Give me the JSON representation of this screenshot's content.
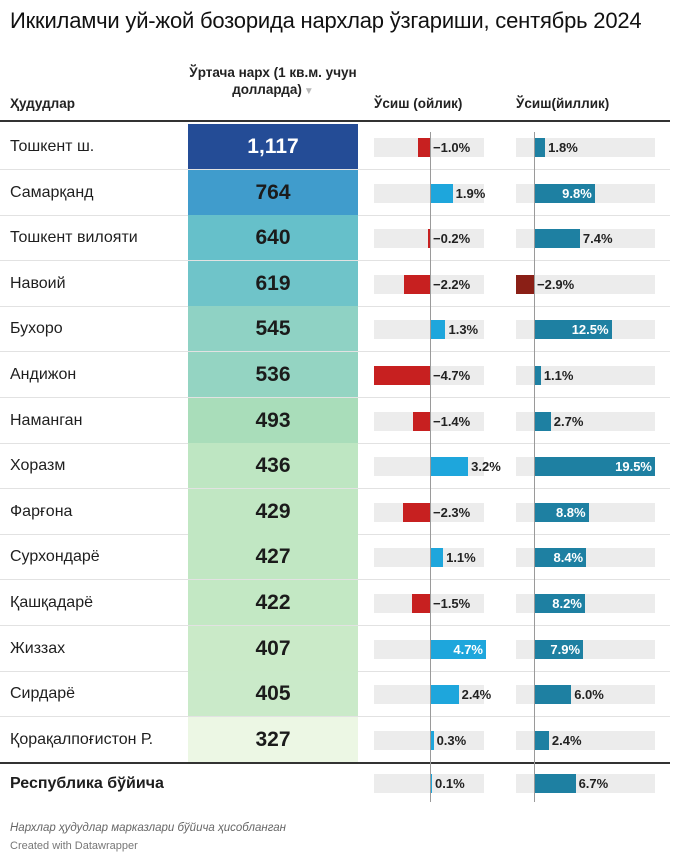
{
  "title": "Иккиламчи уй-жой бозорида нархлар ўзгариши, сентябрь 2024",
  "headers": {
    "region": "Ҳудудлар",
    "price": "Ўртача нарх (1 кв.м. учун долларда)",
    "sort_icon": "▼",
    "monthly": "Ўсиш (ойлик)",
    "yearly": "Ўсиш(йиллик)"
  },
  "colors": {
    "positive_monthly": "#1ea6dc",
    "negative": "#c72020",
    "positive_yearly": "#1e80a2",
    "negative_yearly_dark": "#8a1f16",
    "track": "#ececec"
  },
  "chart_data": {
    "type": "table",
    "title": "Иккиламчи уй-жой бозорида нархлар ўзгариши, сентябрь 2024",
    "columns": [
      "Ҳудудлар",
      "Ўртача нарх (1 кв.м. учун долларда)",
      "Ўсиш (ойлик)",
      "Ўсиш(йиллик)"
    ],
    "rows": [
      {
        "region": "Тошкент ш.",
        "price": 1117,
        "price_label": "1,117",
        "monthly": -1.0,
        "monthly_label": "−1.0%",
        "yearly": 1.8,
        "yearly_label": "1.8%"
      },
      {
        "region": "Самарқанд",
        "price": 764,
        "price_label": "764",
        "monthly": 1.9,
        "monthly_label": "1.9%",
        "yearly": 9.8,
        "yearly_label": "9.8%"
      },
      {
        "region": "Тошкент вилояти",
        "price": 640,
        "price_label": "640",
        "monthly": -0.2,
        "monthly_label": "−0.2%",
        "yearly": 7.4,
        "yearly_label": "7.4%"
      },
      {
        "region": "Навоий",
        "price": 619,
        "price_label": "619",
        "monthly": -2.2,
        "monthly_label": "−2.2%",
        "yearly": -2.9,
        "yearly_label": "−2.9%"
      },
      {
        "region": "Бухоро",
        "price": 545,
        "price_label": "545",
        "monthly": 1.3,
        "monthly_label": "1.3%",
        "yearly": 12.5,
        "yearly_label": "12.5%"
      },
      {
        "region": "Андижон",
        "price": 536,
        "price_label": "536",
        "monthly": -4.7,
        "monthly_label": "−4.7%",
        "yearly": 1.1,
        "yearly_label": "1.1%"
      },
      {
        "region": "Наманган",
        "price": 493,
        "price_label": "493",
        "monthly": -1.4,
        "monthly_label": "−1.4%",
        "yearly": 2.7,
        "yearly_label": "2.7%"
      },
      {
        "region": "Хоразм",
        "price": 436,
        "price_label": "436",
        "monthly": 3.2,
        "monthly_label": "3.2%",
        "yearly": 19.5,
        "yearly_label": "19.5%"
      },
      {
        "region": "Фарғона",
        "price": 429,
        "price_label": "429",
        "monthly": -2.3,
        "monthly_label": "−2.3%",
        "yearly": 8.8,
        "yearly_label": "8.8%"
      },
      {
        "region": "Сурхондарё",
        "price": 427,
        "price_label": "427",
        "monthly": 1.1,
        "monthly_label": "1.1%",
        "yearly": 8.4,
        "yearly_label": "8.4%"
      },
      {
        "region": "Қашқадарё",
        "price": 422,
        "price_label": "422",
        "monthly": -1.5,
        "monthly_label": "−1.5%",
        "yearly": 8.2,
        "yearly_label": "8.2%"
      },
      {
        "region": "Жиззах",
        "price": 407,
        "price_label": "407",
        "monthly": 4.7,
        "monthly_label": "4.7%",
        "yearly": 7.9,
        "yearly_label": "7.9%"
      },
      {
        "region": "Сирдарё",
        "price": 405,
        "price_label": "405",
        "monthly": 2.4,
        "monthly_label": "2.4%",
        "yearly": 6.0,
        "yearly_label": "6.0%"
      },
      {
        "region": "Қорақалпоғистон Р.",
        "price": 327,
        "price_label": "327",
        "monthly": 0.3,
        "monthly_label": "0.3%",
        "yearly": 2.4,
        "yearly_label": "2.4%"
      }
    ],
    "total": {
      "region": "Республика бўйича",
      "monthly": 0.1,
      "monthly_label": "0.1%",
      "yearly": 6.7,
      "yearly_label": "6.7%"
    },
    "monthly_range": [
      -4.7,
      4.7
    ],
    "yearly_range": [
      -2.9,
      19.5
    ]
  },
  "footnote": "Нархлар ҳудудлар марказлари бўйича ҳисобланган",
  "credit": "Created with Datawrapper"
}
